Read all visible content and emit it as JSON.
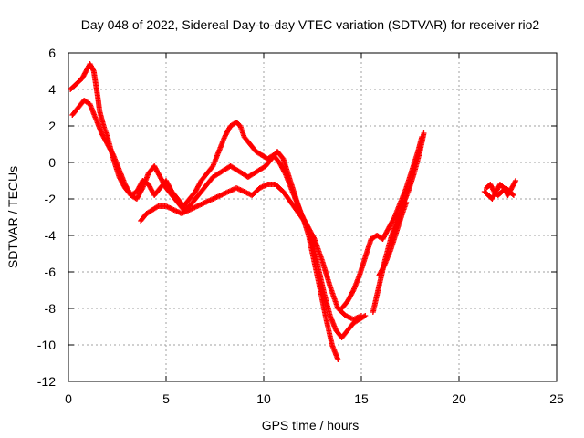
{
  "chart_data": {
    "type": "scatter",
    "title": "Day 048 of 2022, Sidereal Day-to-day VTEC variation (SDTVAR) for receiver rio2",
    "xlabel": "GPS time / hours",
    "ylabel": "SDTVAR / TECUs",
    "xlim": [
      0,
      25
    ],
    "ylim": [
      -12,
      6
    ],
    "xticks": [
      0,
      5,
      10,
      15,
      20,
      25
    ],
    "yticks": [
      -12,
      -10,
      -8,
      -6,
      -4,
      -2,
      0,
      2,
      4,
      6
    ],
    "grid": true,
    "marker": "plus",
    "color": "#ff0000",
    "series": [
      {
        "x": [
          0.1,
          0.3,
          0.5,
          0.7,
          0.9,
          1.1,
          1.3,
          1.5,
          1.6,
          1.8,
          2.0,
          2.3,
          2.6,
          2.9,
          3.2,
          3.5,
          3.8,
          4.1,
          4.4,
          4.7,
          5.0,
          5.3,
          5.6,
          5.9,
          6.2,
          6.5,
          6.8,
          7.1,
          7.4,
          7.7,
          8.0,
          8.3,
          8.6,
          8.8,
          9.0,
          9.3,
          9.6,
          9.9,
          10.2,
          10.5,
          10.8,
          11.1,
          11.4,
          11.7,
          12.0,
          12.3,
          12.6,
          12.9,
          13.2,
          13.5,
          13.8
        ],
        "y": [
          4.0,
          4.2,
          4.4,
          4.6,
          5.0,
          5.4,
          5.0,
          3.6,
          2.8,
          2.0,
          1.4,
          0.2,
          -0.8,
          -1.4,
          -1.8,
          -1.6,
          -1.0,
          -1.2,
          -1.8,
          -1.4,
          -1.0,
          -1.6,
          -2.0,
          -2.4,
          -2.0,
          -1.6,
          -1.0,
          -0.6,
          -0.2,
          0.6,
          1.4,
          2.0,
          2.2,
          2.0,
          1.4,
          1.0,
          0.6,
          0.4,
          0.2,
          0.4,
          0.0,
          -0.6,
          -1.4,
          -2.2,
          -3.0,
          -4.0,
          -5.5,
          -7.0,
          -8.6,
          -10.0,
          -10.8
        ]
      },
      {
        "x": [
          0.2,
          0.5,
          0.8,
          1.1,
          1.4,
          1.7,
          2.0,
          2.3,
          2.6,
          2.9,
          3.2,
          3.5,
          3.8,
          4.1,
          4.4,
          4.7,
          5.0,
          5.3,
          5.6,
          5.9,
          6.2,
          6.5,
          6.8,
          7.1,
          7.4,
          7.7,
          8.0,
          8.3,
          8.6,
          8.9,
          9.2,
          9.5,
          9.8,
          10.1,
          10.4,
          10.7,
          11.0,
          11.3,
          11.6,
          11.9,
          12.2,
          12.5,
          12.8,
          13.1,
          13.4,
          13.7,
          14.0,
          14.3,
          14.6,
          14.9,
          15.2
        ],
        "y": [
          2.6,
          3.0,
          3.4,
          3.2,
          2.4,
          1.6,
          1.0,
          0.4,
          -0.4,
          -1.2,
          -1.8,
          -2.0,
          -1.4,
          -0.6,
          -0.2,
          -0.8,
          -1.4,
          -1.8,
          -2.2,
          -2.6,
          -2.4,
          -2.0,
          -1.6,
          -1.2,
          -0.8,
          -0.6,
          -0.4,
          -0.2,
          -0.4,
          -0.6,
          -0.8,
          -0.6,
          -0.4,
          -0.2,
          0.2,
          0.6,
          0.2,
          -0.8,
          -1.8,
          -2.8,
          -3.4,
          -4.4,
          -5.8,
          -7.2,
          -8.4,
          -9.2,
          -9.6,
          -9.2,
          -8.8,
          -8.6,
          -8.4
        ]
      },
      {
        "x": [
          3.7,
          4.0,
          4.3,
          4.6,
          5.0,
          5.4,
          5.8,
          6.2,
          6.6,
          7.0,
          7.4,
          7.8,
          8.2,
          8.6,
          9.0,
          9.4,
          9.8,
          10.2,
          10.6,
          11.0,
          11.4,
          11.8,
          12.2,
          12.6,
          13.0,
          13.4,
          13.8,
          14.2,
          14.6,
          15.0
        ],
        "y": [
          -3.2,
          -2.8,
          -2.6,
          -2.4,
          -2.4,
          -2.6,
          -2.8,
          -2.6,
          -2.4,
          -2.2,
          -2.0,
          -1.8,
          -1.6,
          -1.4,
          -1.6,
          -1.8,
          -1.4,
          -1.2,
          -1.2,
          -1.6,
          -2.2,
          -2.8,
          -3.4,
          -4.2,
          -5.4,
          -6.8,
          -8.0,
          -8.4,
          -8.6,
          -8.4
        ]
      },
      {
        "x": [
          14.0,
          14.3,
          14.6,
          14.9,
          15.2,
          15.5,
          15.8,
          16.1,
          16.4,
          16.7,
          17.0,
          17.3,
          17.6,
          17.9,
          18.1
        ],
        "y": [
          -8.0,
          -7.6,
          -7.0,
          -6.2,
          -5.2,
          -4.2,
          -4.0,
          -4.2,
          -3.6,
          -3.0,
          -2.2,
          -1.4,
          -0.4,
          0.6,
          1.4
        ]
      },
      {
        "x": [
          15.6,
          15.9,
          16.2,
          16.5,
          16.8,
          17.1,
          17.4,
          17.7,
          18.0,
          18.2
        ],
        "y": [
          -8.2,
          -6.8,
          -5.4,
          -4.2,
          -3.2,
          -2.4,
          -1.6,
          -0.6,
          0.6,
          1.6
        ]
      },
      {
        "x": [
          15.9,
          16.2,
          16.5,
          16.8,
          17.1,
          17.3
        ],
        "y": [
          -6.2,
          -5.6,
          -4.8,
          -3.8,
          -2.8,
          -2.2
        ]
      },
      {
        "x": [
          21.3,
          21.5,
          21.7,
          21.9,
          22.1,
          22.3,
          22.5,
          22.7,
          22.9
        ],
        "y": [
          -1.6,
          -1.8,
          -2.0,
          -1.6,
          -1.2,
          -1.4,
          -1.8,
          -1.4,
          -1.0
        ]
      },
      {
        "x": [
          21.4,
          21.6,
          21.8,
          22.0,
          22.2,
          22.4,
          22.6,
          22.8
        ],
        "y": [
          -1.4,
          -1.2,
          -1.6,
          -1.8,
          -1.6,
          -1.4,
          -1.6,
          -1.8
        ]
      }
    ]
  }
}
